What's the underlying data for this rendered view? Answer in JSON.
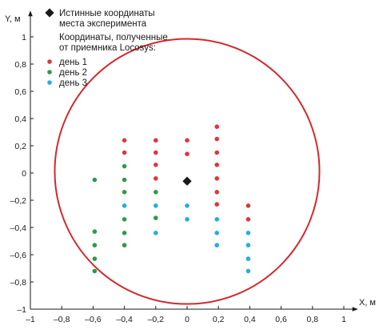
{
  "chart_data": {
    "type": "scatter",
    "xlabel": "X, м",
    "ylabel": "Y, м",
    "xlim": [
      -1,
      1.05
    ],
    "ylim": [
      -1,
      1.05
    ],
    "x_ticks": [
      -1,
      -0.8,
      -0.6,
      -0.4,
      -0.2,
      0,
      0.2,
      0.4,
      0.6,
      0.8,
      1
    ],
    "x_tick_labels": [
      "–1",
      "–0,8",
      "–0,6",
      "–0,4",
      "–0,2",
      "0",
      "0,2",
      "0,4",
      "0,6",
      "0,8",
      "1"
    ],
    "y_ticks": [
      1,
      0.8,
      0.6,
      0.4,
      0.2,
      0,
      -0.2,
      -0.4,
      -0.6,
      -0.8,
      -1
    ],
    "y_tick_labels": [
      "1",
      "0,8",
      "0,6",
      "0,4",
      "0,2",
      "0",
      "–0,2",
      "–0,4",
      "–0,6",
      "–0,8",
      "–1"
    ],
    "grid": false,
    "legend_position": "top-left",
    "circle": {
      "center": [
        0,
        0
      ],
      "radius": 0.89,
      "color": "#d0292e"
    },
    "true_point": {
      "name": "Истинные координаты места эксперимента",
      "x": 0,
      "y": -0.06,
      "color": "#1a1a1a"
    },
    "legend_header": "Координаты, полученные от приемника Locosys:",
    "series": [
      {
        "name": "день 1",
        "color": "#e0353a",
        "points": [
          [
            -0.4,
            0.24
          ],
          [
            -0.4,
            0.15
          ],
          [
            -0.2,
            0.24
          ],
          [
            -0.2,
            0.15
          ],
          [
            -0.2,
            0.06
          ],
          [
            -0.2,
            -0.04
          ],
          [
            0,
            0.24
          ],
          [
            0,
            0.14
          ],
          [
            0.19,
            0.34
          ],
          [
            0.19,
            0.25
          ],
          [
            0.19,
            0.15
          ],
          [
            0.19,
            0.06
          ],
          [
            0.19,
            -0.04
          ],
          [
            0.19,
            -0.14
          ],
          [
            0.19,
            -0.23
          ],
          [
            0.39,
            -0.24
          ],
          [
            0.39,
            -0.34
          ]
        ]
      },
      {
        "name": "день 2",
        "color": "#2e9a4a",
        "points": [
          [
            -0.59,
            -0.05
          ],
          [
            -0.59,
            -0.43
          ],
          [
            -0.59,
            -0.53
          ],
          [
            -0.59,
            -0.63
          ],
          [
            -0.59,
            -0.72
          ],
          [
            -0.4,
            0.05
          ],
          [
            -0.4,
            -0.05
          ],
          [
            -0.4,
            -0.14
          ],
          [
            -0.4,
            -0.34
          ],
          [
            -0.4,
            -0.44
          ],
          [
            -0.4,
            -0.53
          ],
          [
            -0.2,
            -0.14
          ],
          [
            -0.2,
            -0.33
          ]
        ]
      },
      {
        "name": "день 3",
        "color": "#22aee0",
        "points": [
          [
            -0.4,
            -0.24
          ],
          [
            -0.2,
            -0.24
          ],
          [
            -0.2,
            -0.44
          ],
          [
            0,
            -0.24
          ],
          [
            0,
            -0.34
          ],
          [
            0.19,
            -0.34
          ],
          [
            0.19,
            -0.44
          ],
          [
            0.19,
            -0.53
          ],
          [
            0.39,
            -0.44
          ],
          [
            0.39,
            -0.53
          ],
          [
            0.39,
            -0.63
          ],
          [
            0.39,
            -0.72
          ]
        ]
      }
    ]
  }
}
